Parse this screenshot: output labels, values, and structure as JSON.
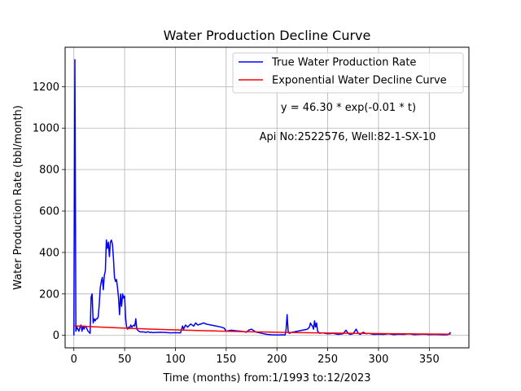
{
  "chart_data": {
    "type": "line",
    "title": "Water Production Decline Curve",
    "xlabel": "Time (months) from:1/1993 to:12/2023",
    "ylabel": "Water Production Rate (bbl/month)",
    "xlim": [
      -8.6,
      389
    ],
    "ylim": [
      -60,
      1390
    ],
    "xticks": [
      0,
      50,
      100,
      150,
      200,
      250,
      300,
      350
    ],
    "xtick_labels": [
      "0",
      "50",
      "100",
      "150",
      "200",
      "250",
      "300",
      "350"
    ],
    "yticks": [
      0,
      200,
      400,
      600,
      800,
      1000,
      1200
    ],
    "ytick_labels": [
      "0",
      "200",
      "400",
      "600",
      "800",
      "1000",
      "1200"
    ],
    "grid": true,
    "legend_position": "top-right",
    "annotations": [
      "y = 46.30 * exp(-0.01 * t)",
      "Api No:2522576, Well:82-1-SX-10"
    ],
    "series": [
      {
        "name": "True Water Production Rate",
        "color": "#0000ff",
        "x": [
          0,
          1,
          2,
          3,
          4,
          5,
          6,
          7,
          8,
          9,
          10,
          11,
          12,
          13,
          14,
          15,
          16,
          17,
          18,
          19,
          20,
          21,
          22,
          23,
          24,
          25,
          26,
          27,
          28,
          29,
          30,
          31,
          32,
          33,
          34,
          35,
          36,
          37,
          38,
          39,
          40,
          41,
          42,
          43,
          44,
          45,
          46,
          47,
          48,
          49,
          50,
          51,
          52,
          53,
          54,
          55,
          56,
          57,
          58,
          59,
          60,
          61,
          62,
          63,
          64,
          65,
          66,
          67,
          68,
          69,
          70,
          71,
          72,
          73,
          74,
          75,
          76,
          78,
          80,
          85,
          90,
          95,
          100,
          105,
          107,
          108,
          110,
          112,
          115,
          118,
          120,
          122,
          125,
          128,
          130,
          135,
          140,
          145,
          148,
          150,
          155,
          160,
          165,
          170,
          172,
          175,
          178,
          180,
          185,
          190,
          195,
          200,
          205,
          208,
          209,
          210,
          211,
          212,
          215,
          220,
          225,
          230,
          232,
          233,
          234,
          235,
          236,
          237,
          238,
          239,
          240,
          242,
          245,
          250,
          255,
          260,
          265,
          268,
          270,
          272,
          275,
          278,
          280,
          282,
          285,
          288,
          290,
          295,
          300,
          305,
          310,
          315,
          320,
          325,
          330,
          335,
          340,
          345,
          350,
          355,
          360,
          365,
          368,
          369,
          370,
          371
        ],
        "y": [
          0,
          1330,
          20,
          40,
          30,
          20,
          40,
          50,
          20,
          45,
          30,
          45,
          40,
          30,
          20,
          15,
          10,
          185,
          200,
          60,
          80,
          70,
          80,
          80,
          90,
          150,
          230,
          260,
          280,
          220,
          290,
          310,
          460,
          420,
          450,
          380,
          450,
          460,
          440,
          370,
          280,
          260,
          270,
          230,
          180,
          100,
          200,
          140,
          200,
          180,
          190,
          80,
          40,
          30,
          40,
          35,
          50,
          40,
          45,
          50,
          45,
          80,
          30,
          25,
          20,
          18,
          16,
          18,
          16,
          17,
          15,
          14,
          16,
          18,
          15,
          14,
          15,
          13,
          14,
          15,
          14,
          12,
          13,
          12,
          45,
          30,
          50,
          40,
          55,
          45,
          60,
          50,
          55,
          60,
          55,
          50,
          45,
          40,
          35,
          20,
          25,
          22,
          20,
          15,
          25,
          30,
          20,
          15,
          10,
          5,
          3,
          2,
          3,
          2,
          30,
          100,
          20,
          10,
          15,
          20,
          25,
          30,
          40,
          60,
          50,
          45,
          30,
          70,
          40,
          60,
          20,
          10,
          12,
          8,
          10,
          5,
          8,
          25,
          10,
          5,
          8,
          30,
          10,
          5,
          15,
          8,
          10,
          5,
          6,
          5,
          8,
          4,
          6,
          5,
          8,
          4,
          5,
          6,
          4,
          5,
          4,
          3,
          4,
          5,
          10,
          15
        ]
      },
      {
        "name": "Exponential Water Decline Curve",
        "color": "#ff0000",
        "type": "exponential",
        "a": 46.3,
        "b": -0.00558,
        "x_range": [
          0,
          371
        ]
      }
    ]
  }
}
